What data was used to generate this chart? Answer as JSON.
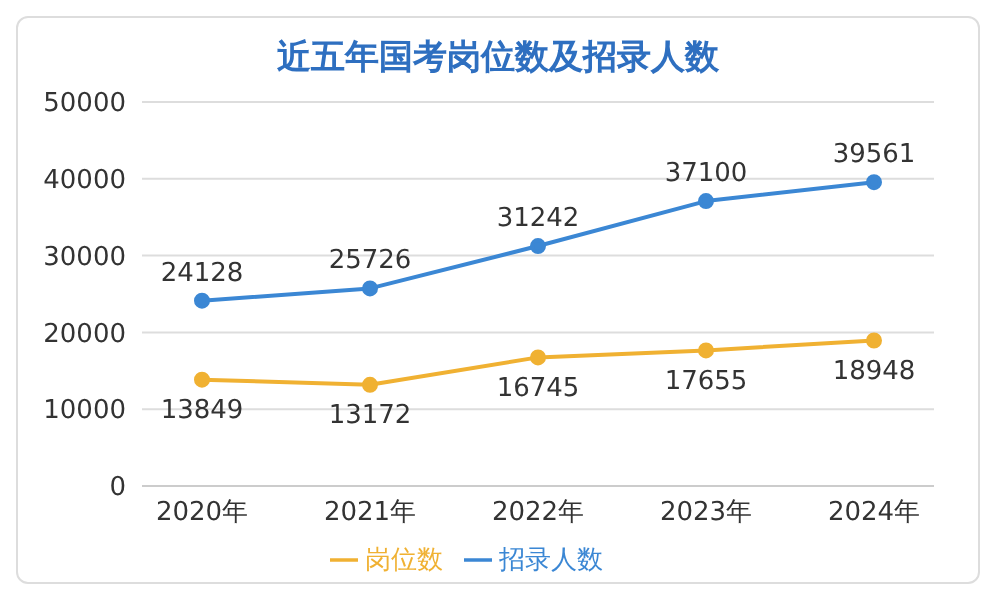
{
  "chart_data": {
    "type": "line",
    "title": "近五年国考岗位数及招录人数",
    "categories": [
      "2020年",
      "2021年",
      "2022年",
      "2023年",
      "2024年"
    ],
    "series": [
      {
        "name": "招录人数",
        "color": "#3b87d4",
        "values": [
          24128,
          25726,
          31242,
          37100,
          39561
        ]
      },
      {
        "name": "岗位数",
        "color": "#f0b132",
        "values": [
          13849,
          13172,
          16745,
          17655,
          18948
        ]
      }
    ],
    "ylim": [
      0,
      50000
    ],
    "yticks": [
      0,
      10000,
      20000,
      30000,
      40000,
      50000
    ],
    "grid": "y",
    "legend": "bottom",
    "data_labels": true,
    "marker": "circle",
    "line_style": "solid"
  }
}
